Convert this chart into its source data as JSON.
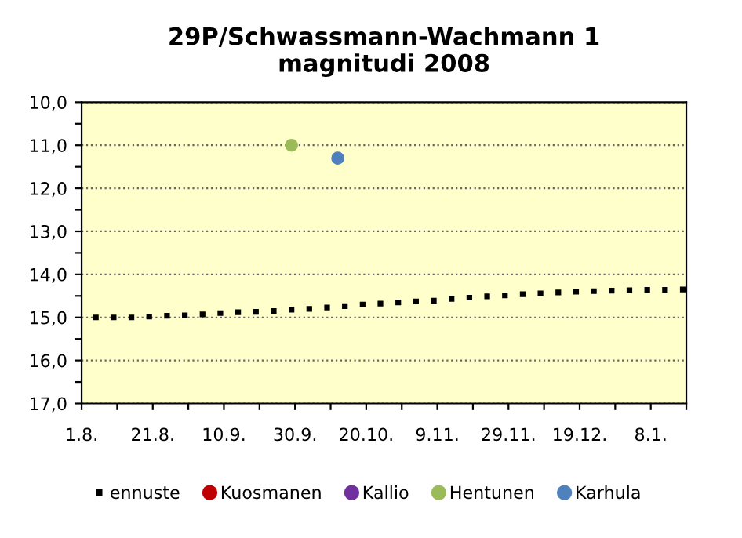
{
  "chart_data": {
    "type": "scatter",
    "title": "29P/Schwassmann-Wachmann 1\nmagnitudi 2008",
    "xlim": [
      "2008-08-01",
      "2009-01-18"
    ],
    "xticks": [
      {
        "value": "2008-08-01",
        "label": "1.8."
      },
      {
        "value": "2008-08-11",
        "label": null
      },
      {
        "value": "2008-08-21",
        "label": "21.8."
      },
      {
        "value": "2008-08-31",
        "label": null
      },
      {
        "value": "2008-09-10",
        "label": "10.9."
      },
      {
        "value": "2008-09-20",
        "label": null
      },
      {
        "value": "2008-09-30",
        "label": "30.9."
      },
      {
        "value": "2008-10-10",
        "label": null
      },
      {
        "value": "2008-10-20",
        "label": "20.10."
      },
      {
        "value": "2008-10-30",
        "label": null
      },
      {
        "value": "2008-11-09",
        "label": "9.11."
      },
      {
        "value": "2008-11-19",
        "label": null
      },
      {
        "value": "2008-11-29",
        "label": "29.11."
      },
      {
        "value": "2008-12-09",
        "label": null
      },
      {
        "value": "2008-12-19",
        "label": "19.12."
      },
      {
        "value": "2008-12-29",
        "label": null
      },
      {
        "value": "2009-01-08",
        "label": "8.1."
      },
      {
        "value": "2009-01-18",
        "label": null
      }
    ],
    "ylim": [
      17,
      10
    ],
    "yticks": [
      {
        "value": 10,
        "label": "10,0"
      },
      {
        "value": 10.5,
        "label": null
      },
      {
        "value": 11,
        "label": "11,0"
      },
      {
        "value": 11.5,
        "label": null
      },
      {
        "value": 12,
        "label": "12,0"
      },
      {
        "value": 12.5,
        "label": null
      },
      {
        "value": 13,
        "label": "13,0"
      },
      {
        "value": 13.5,
        "label": null
      },
      {
        "value": 14,
        "label": "14,0"
      },
      {
        "value": 14.5,
        "label": null
      },
      {
        "value": 15,
        "label": "15,0"
      },
      {
        "value": 15.5,
        "label": null
      },
      {
        "value": 16,
        "label": "16,0"
      },
      {
        "value": 16.5,
        "label": null
      },
      {
        "value": 17,
        "label": "17,0"
      }
    ],
    "grid": "y",
    "legend": "bottom",
    "series": [
      {
        "name": "ennuste",
        "color": "#000000",
        "marker": "square",
        "x": [
          "2008-08-05",
          "2008-08-10",
          "2008-08-15",
          "2008-08-20",
          "2008-08-25",
          "2008-08-30",
          "2008-09-04",
          "2008-09-09",
          "2008-09-14",
          "2008-09-19",
          "2008-09-24",
          "2008-09-29",
          "2008-10-04",
          "2008-10-09",
          "2008-10-14",
          "2008-10-19",
          "2008-10-24",
          "2008-10-29",
          "2008-11-03",
          "2008-11-08",
          "2008-11-13",
          "2008-11-18",
          "2008-11-23",
          "2008-11-28",
          "2008-12-03",
          "2008-12-08",
          "2008-12-13",
          "2008-12-18",
          "2008-12-23",
          "2008-12-28",
          "2009-01-02",
          "2009-01-07",
          "2009-01-12",
          "2009-01-17"
        ],
        "values": [
          15.0,
          15.0,
          15.0,
          14.98,
          14.96,
          14.95,
          14.93,
          14.9,
          14.88,
          14.87,
          14.85,
          14.82,
          14.8,
          14.77,
          14.74,
          14.7,
          14.68,
          14.65,
          14.63,
          14.61,
          14.57,
          14.54,
          14.51,
          14.49,
          14.46,
          14.44,
          14.42,
          14.4,
          14.39,
          14.38,
          14.37,
          14.36,
          14.36,
          14.35
        ]
      },
      {
        "name": "Kuosmanen",
        "color": "#c00000",
        "marker": "circle"
      },
      {
        "name": "Kallio",
        "color": "#7030a0",
        "marker": "circle"
      },
      {
        "name": "Hentunen",
        "color": "#9bbb59",
        "marker": "circle",
        "x": [
          "2008-09-29"
        ],
        "values": [
          11.0
        ]
      },
      {
        "name": "Karhula",
        "color": "#4f81bd",
        "marker": "circle",
        "x": [
          "2008-10-12"
        ],
        "values": [
          11.3
        ]
      }
    ]
  }
}
